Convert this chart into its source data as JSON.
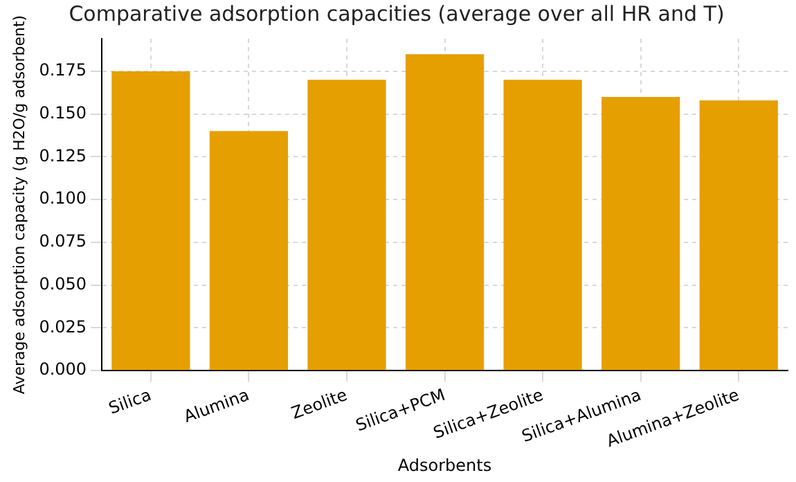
{
  "chart_data": {
    "type": "bar",
    "title": "Comparative adsorption capacities (average over all HR and T)",
    "xlabel": "Adsorbents",
    "ylabel": "Average adsorption capacity (g H2O/g adsorbent)",
    "categories": [
      "Silica",
      "Alumina",
      "Zeolite",
      "Silica+PCM",
      "Silica+Zeolite",
      "Silica+Alumina",
      "Alumina+Zeolite"
    ],
    "values": [
      0.175,
      0.14,
      0.17,
      0.185,
      0.17,
      0.16,
      0.158
    ],
    "color": "#e69f00",
    "ylim": [
      0,
      0.194
    ],
    "yticks": [
      {
        "value": 0,
        "label": "0.000"
      },
      {
        "value": 0.025,
        "label": "0.025"
      },
      {
        "value": 0.05,
        "label": "0.050"
      },
      {
        "value": 0.075,
        "label": "0.075"
      },
      {
        "value": 0.1,
        "label": "0.100"
      },
      {
        "value": 0.125,
        "label": "0.125"
      },
      {
        "value": 0.15,
        "label": "0.150"
      },
      {
        "value": 0.175,
        "label": "0.175"
      }
    ],
    "grid": true
  }
}
